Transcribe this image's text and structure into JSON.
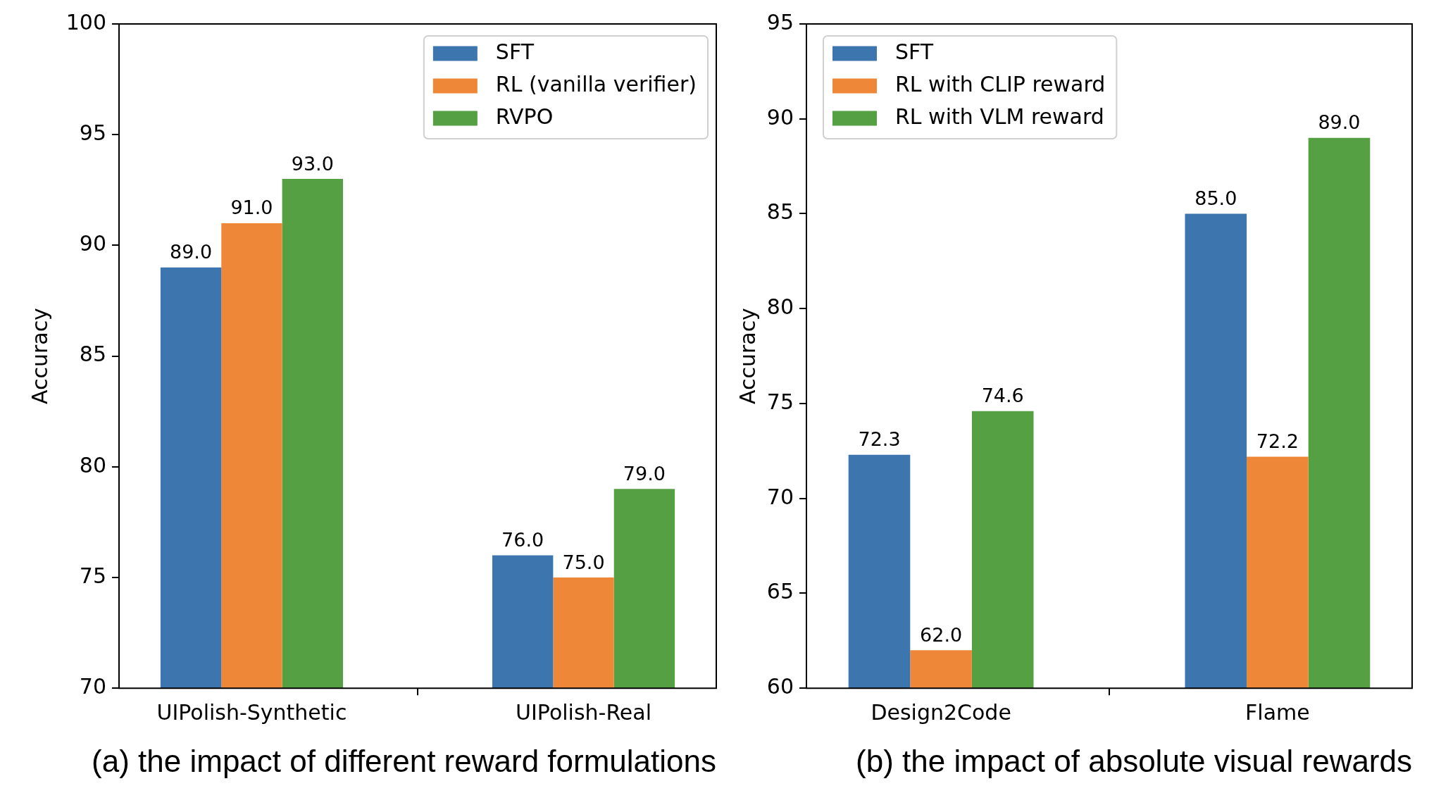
{
  "chart_data": [
    {
      "type": "bar",
      "title": "(a) the impact of different reward formulations",
      "ylabel": "Accuracy",
      "categories": [
        "UIPolish-Synthetic",
        "UIPolish-Real"
      ],
      "series": [
        {
          "name": "SFT",
          "color": "#3d76af",
          "values": [
            89,
            76
          ],
          "value_labels": [
            "89.0",
            "76.0"
          ]
        },
        {
          "name": "RL (vanilla verifier)",
          "color": "#ee8838",
          "values": [
            91,
            75
          ],
          "value_labels": [
            "91.0",
            "75.0"
          ]
        },
        {
          "name": "RVPO",
          "color": "#54a042",
          "values": [
            93,
            79
          ],
          "value_labels": [
            "93.0",
            "79.0"
          ]
        }
      ],
      "ylim": [
        70,
        100
      ],
      "yticks": [
        70,
        75,
        80,
        85,
        90,
        95,
        100
      ],
      "legend": "top right"
    },
    {
      "type": "bar",
      "title": "(b) the impact of absolute visual rewards",
      "ylabel": "Accuracy",
      "categories": [
        "Design2Code",
        "Flame"
      ],
      "series": [
        {
          "name": "SFT",
          "color": "#3d76af",
          "values": [
            72.3,
            85
          ],
          "value_labels": [
            "72.3",
            "85.0"
          ]
        },
        {
          "name": "RL with CLIP reward",
          "color": "#ee8838",
          "values": [
            62,
            72.2
          ],
          "value_labels": [
            "62.0",
            "72.2"
          ]
        },
        {
          "name": "RL with VLM reward",
          "color": "#54a042",
          "values": [
            74.6,
            89
          ],
          "value_labels": [
            "74.6",
            "89.0"
          ]
        }
      ],
      "ylim": [
        60,
        95
      ],
      "yticks": [
        60,
        65,
        70,
        75,
        80,
        85,
        90,
        95
      ],
      "legend": "top left"
    }
  ]
}
